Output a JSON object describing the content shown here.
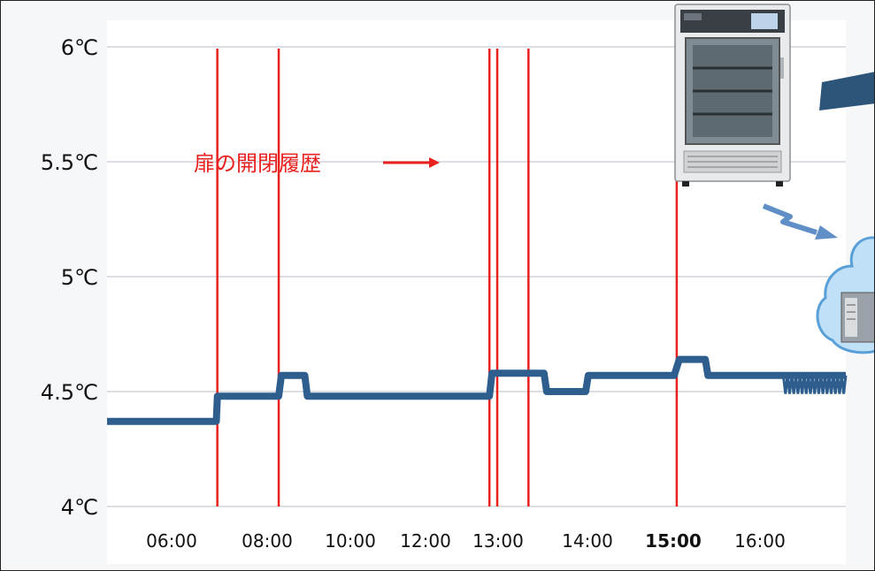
{
  "chart_data": {
    "type": "line",
    "title": "",
    "xlabel": "",
    "ylabel": "",
    "ylim": [
      3.95,
      6.05
    ],
    "y_ticks": [
      "4℃",
      "4.5℃",
      "5℃",
      "5.5℃",
      "6℃"
    ],
    "y_tick_values": [
      4,
      4.5,
      5,
      5.5,
      6
    ],
    "x_ticks": [
      "06:00",
      "08:00",
      "10:00",
      "12:00",
      "13:00",
      "14:00",
      "15:00",
      "16:00"
    ],
    "x_tick_bold": "15:00",
    "grid": true,
    "series": [
      {
        "color": "#2e5e8e",
        "points": [
          [
            0.0,
            4.37
          ],
          [
            2.1,
            4.37
          ],
          [
            2.12,
            4.48
          ],
          [
            3.3,
            4.48
          ],
          [
            3.35,
            4.57
          ],
          [
            3.8,
            4.57
          ],
          [
            3.85,
            4.48
          ],
          [
            7.35,
            4.48
          ],
          [
            7.4,
            4.58
          ],
          [
            8.4,
            4.58
          ],
          [
            8.45,
            4.5
          ],
          [
            9.2,
            4.5
          ],
          [
            9.25,
            4.57
          ],
          [
            10.9,
            4.57
          ],
          [
            11.0,
            4.64
          ],
          [
            11.5,
            4.64
          ],
          [
            11.55,
            4.57
          ],
          [
            14.2,
            4.57
          ]
        ]
      }
    ],
    "door_events_x": [
      2.12,
      3.3,
      7.35,
      7.5,
      8.1,
      10.95
    ],
    "door_event_color": "#e8211f",
    "annotation": "扉の開閉履歴"
  },
  "colors": {
    "grid": "#dcdfe3",
    "line": "#2e5e8e",
    "door": "#e8211f"
  },
  "icons": {
    "device": "refrigerator-icon",
    "signal": "wireless-signal-icon",
    "cloud": "cloud-server-icon"
  }
}
